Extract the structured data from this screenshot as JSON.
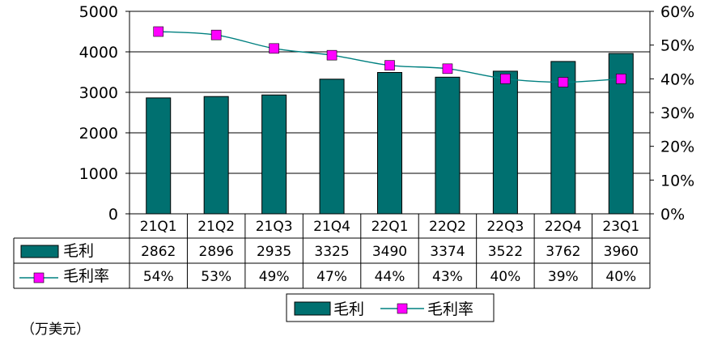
{
  "chart_data": {
    "type": "bar",
    "categories": [
      "21Q1",
      "21Q2",
      "21Q3",
      "21Q4",
      "22Q1",
      "22Q2",
      "22Q3",
      "22Q4",
      "23Q1"
    ],
    "series": [
      {
        "name": "毛利",
        "kind": "bar",
        "axis": "left",
        "color": "#007070",
        "values": [
          2862,
          2896,
          2935,
          3325,
          3490,
          3374,
          3522,
          3762,
          3960
        ]
      },
      {
        "name": "毛利率",
        "kind": "line",
        "axis": "right",
        "line_color": "#008080",
        "marker_color": "#ff00ff",
        "values": [
          0.54,
          0.53,
          0.49,
          0.47,
          0.44,
          0.43,
          0.4,
          0.39,
          0.4
        ]
      }
    ],
    "y_left": {
      "min": 0,
      "max": 5000,
      "ticks": [
        "0",
        "1000",
        "2000",
        "3000",
        "4000",
        "5000"
      ]
    },
    "y_right": {
      "min": 0,
      "max": 0.6,
      "ticks": [
        "0%",
        "10%",
        "20%",
        "30%",
        "40%",
        "50%",
        "60%"
      ]
    },
    "grid": "horizontal",
    "legend_placement": "bottom",
    "data_table": {
      "rows": [
        {
          "label": "毛利",
          "cells": [
            "2862",
            "2896",
            "2935",
            "3325",
            "3490",
            "3374",
            "3522",
            "3762",
            "3960"
          ]
        },
        {
          "label": "毛利率",
          "cells": [
            "54%",
            "53%",
            "49%",
            "47%",
            "44%",
            "43%",
            "40%",
            "39%",
            "40%"
          ]
        }
      ]
    },
    "unit_note": "（万美元）"
  }
}
